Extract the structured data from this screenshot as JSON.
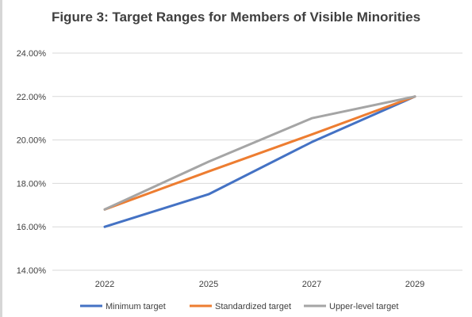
{
  "chart_data": {
    "type": "line",
    "title": "Figure 3: Target Ranges for Members of Visible Minorities",
    "categories": [
      "2022",
      "2025",
      "2027",
      "2029"
    ],
    "ylim": [
      0.14,
      0.24
    ],
    "yticks": [
      "14.00%",
      "16.00%",
      "18.00%",
      "20.00%",
      "22.00%",
      "24.00%"
    ],
    "ytick_values": [
      0.14,
      0.16,
      0.18,
      0.2,
      0.22,
      0.24
    ],
    "grid": true,
    "legend_position": "bottom",
    "series": [
      {
        "name": "Minimum target",
        "color": "#4472c4",
        "values": [
          0.16,
          0.175,
          0.199,
          0.22
        ]
      },
      {
        "name": "Standardized target",
        "color": "#ed7d31",
        "values": [
          0.168,
          0.1855,
          0.2025,
          0.22
        ]
      },
      {
        "name": "Upper-level target",
        "color": "#a5a5a5",
        "values": [
          0.168,
          0.19,
          0.21,
          0.22
        ]
      }
    ]
  }
}
